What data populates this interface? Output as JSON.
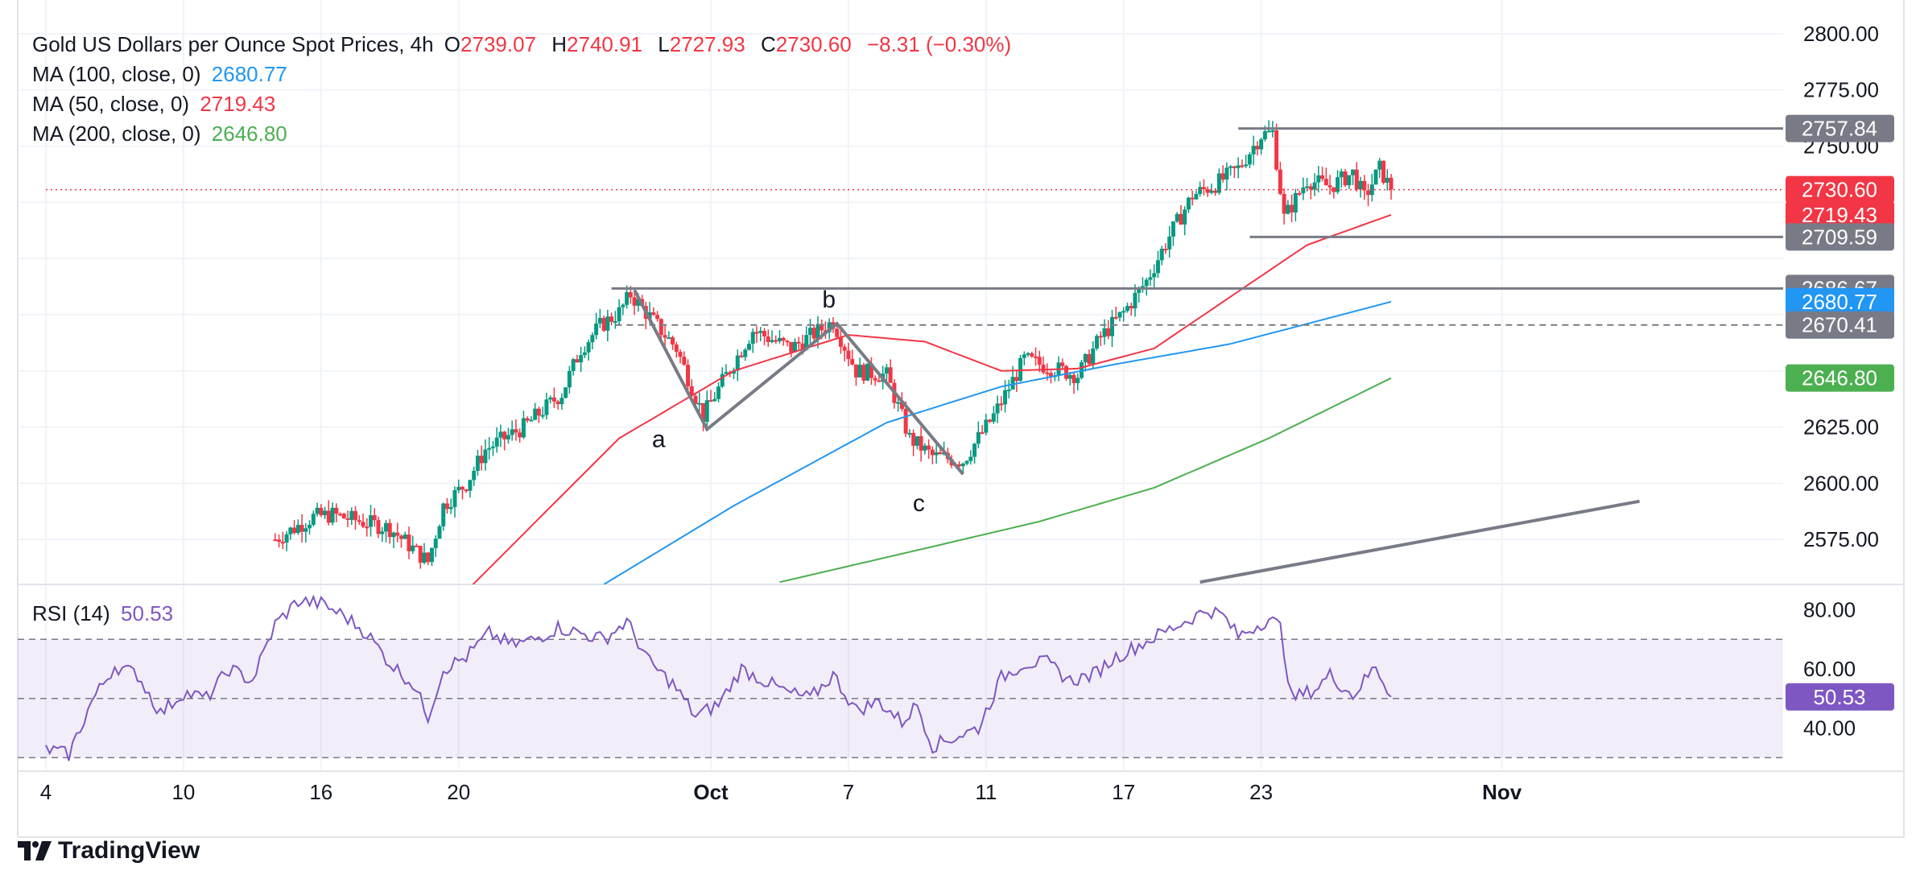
{
  "legend": {
    "title": "Gold US Dollars per Ounce Spot Prices, 4h",
    "o_label": "O",
    "o": "2739.07",
    "h_label": "H",
    "h": "2740.91",
    "l_label": "L",
    "l": "2727.93",
    "c_label": "C",
    "c": "2730.60",
    "change": "−8.31 (−0.30%)",
    "ma100_label": "MA (100, close, 0)",
    "ma100": "2680.77",
    "ma50_label": "MA (50, close, 0)",
    "ma50": "2719.43",
    "ma200_label": "MA (200, close, 0)",
    "ma200": "2646.80"
  },
  "rsi_legend": {
    "label": "RSI (14)",
    "value": "50.53"
  },
  "brand": "TradingView",
  "colors": {
    "up": "#089981",
    "down": "#f23645",
    "ma50": "#f23645",
    "ma100": "#2196f3",
    "ma200": "#4caf50",
    "rsi": "#7e57c2",
    "drawing": "#787b86",
    "grid": "#f0f3fa"
  },
  "chart_data": [
    {
      "type": "candlestick",
      "title": "Gold US Dollars per Ounce Spot Prices, 4h",
      "ylim": [
        2555,
        2815
      ],
      "y_ticks": [
        2575,
        2600,
        2625,
        2650,
        2675,
        2700,
        2725,
        2750,
        2775,
        2800
      ],
      "y_tick_labels": [
        "2575.00",
        "2600.00",
        "2625.00",
        "",
        "",
        "",
        "",
        "2750.00",
        "2775.00",
        "2800.00"
      ],
      "x_ticks": [
        {
          "label": "4",
          "bar": 0
        },
        {
          "label": "10",
          "bar": 36
        },
        {
          "label": "16",
          "bar": 72
        },
        {
          "label": "20",
          "bar": 108
        },
        {
          "label": "Oct",
          "bar": 174
        },
        {
          "label": "7",
          "bar": 210
        },
        {
          "label": "11",
          "bar": 246
        },
        {
          "label": "17",
          "bar": 282
        },
        {
          "label": "23",
          "bar": 318
        },
        {
          "label": "Nov",
          "bar": 381
        }
      ],
      "bar_count_axis": [
        0,
        417
      ],
      "key_points": [
        {
          "bar": 60,
          "price": 2575
        },
        {
          "bar": 70,
          "price": 2585
        },
        {
          "bar": 75,
          "price": 2586
        },
        {
          "bar": 90,
          "price": 2580
        },
        {
          "bar": 100,
          "price": 2565
        },
        {
          "bar": 104,
          "price": 2590
        },
        {
          "bar": 110,
          "price": 2600
        },
        {
          "bar": 115,
          "price": 2615
        },
        {
          "bar": 125,
          "price": 2625
        },
        {
          "bar": 135,
          "price": 2640
        },
        {
          "bar": 140,
          "price": 2660
        },
        {
          "bar": 145,
          "price": 2670
        },
        {
          "bar": 150,
          "price": 2676
        },
        {
          "bar": 153,
          "price": 2684
        },
        {
          "bar": 160,
          "price": 2670
        },
        {
          "bar": 165,
          "price": 2660
        },
        {
          "bar": 172,
          "price": 2630
        },
        {
          "bar": 178,
          "price": 2648
        },
        {
          "bar": 185,
          "price": 2668
        },
        {
          "bar": 195,
          "price": 2660
        },
        {
          "bar": 206,
          "price": 2672
        },
        {
          "bar": 212,
          "price": 2650
        },
        {
          "bar": 220,
          "price": 2648
        },
        {
          "bar": 226,
          "price": 2620
        },
        {
          "bar": 232,
          "price": 2612
        },
        {
          "bar": 240,
          "price": 2610
        },
        {
          "bar": 248,
          "price": 2630
        },
        {
          "bar": 256,
          "price": 2655
        },
        {
          "bar": 262,
          "price": 2652
        },
        {
          "bar": 270,
          "price": 2648
        },
        {
          "bar": 276,
          "price": 2665
        },
        {
          "bar": 282,
          "price": 2676
        },
        {
          "bar": 288,
          "price": 2690
        },
        {
          "bar": 294,
          "price": 2710
        },
        {
          "bar": 300,
          "price": 2728
        },
        {
          "bar": 306,
          "price": 2733
        },
        {
          "bar": 312,
          "price": 2740
        },
        {
          "bar": 318,
          "price": 2755
        },
        {
          "bar": 321,
          "price": 2756
        },
        {
          "bar": 324,
          "price": 2718
        },
        {
          "bar": 330,
          "price": 2735
        },
        {
          "bar": 336,
          "price": 2732
        },
        {
          "bar": 342,
          "price": 2738
        },
        {
          "bar": 345,
          "price": 2727
        },
        {
          "bar": 349,
          "price": 2740
        },
        {
          "bar": 352,
          "price": 2730.6
        }
      ],
      "moving_averages": [
        {
          "name": "MA (50, close, 0)",
          "color": "#f23645",
          "points": [
            {
              "bar": 110,
              "price": 2552
            },
            {
              "bar": 150,
              "price": 2620
            },
            {
              "bar": 180,
              "price": 2650
            },
            {
              "bar": 210,
              "price": 2666
            },
            {
              "bar": 230,
              "price": 2663
            },
            {
              "bar": 250,
              "price": 2650
            },
            {
              "bar": 270,
              "price": 2651
            },
            {
              "bar": 290,
              "price": 2660
            },
            {
              "bar": 310,
              "price": 2683
            },
            {
              "bar": 330,
              "price": 2706
            },
            {
              "bar": 352,
              "price": 2719.43
            }
          ]
        },
        {
          "name": "MA (100, close, 0)",
          "color": "#2196f3",
          "points": [
            {
              "bar": 146,
              "price": 2555
            },
            {
              "bar": 180,
              "price": 2590
            },
            {
              "bar": 220,
              "price": 2627
            },
            {
              "bar": 250,
              "price": 2643
            },
            {
              "bar": 280,
              "price": 2653
            },
            {
              "bar": 310,
              "price": 2662
            },
            {
              "bar": 352,
              "price": 2680.77
            }
          ]
        },
        {
          "name": "MA (200, close, 0)",
          "color": "#4caf50",
          "points": [
            {
              "bar": 192,
              "price": 2556
            },
            {
              "bar": 230,
              "price": 2571
            },
            {
              "bar": 260,
              "price": 2583
            },
            {
              "bar": 290,
              "price": 2598
            },
            {
              "bar": 320,
              "price": 2620
            },
            {
              "bar": 352,
              "price": 2646.8
            }
          ]
        }
      ],
      "price_labels": [
        {
          "value": "2757.84",
          "price": 2757.84,
          "color": "#787b86"
        },
        {
          "value": "2730.60",
          "price": 2730.6,
          "color": "#f23645"
        },
        {
          "value": "2719.43",
          "price": 2719.43,
          "color": "#f23645"
        },
        {
          "value": "2709.59",
          "price": 2709.59,
          "color": "#787b86"
        },
        {
          "value": "2686.67",
          "price": 2686.67,
          "color": "#787b86"
        },
        {
          "value": "2680.77",
          "price": 2680.77,
          "color": "#2196f3"
        },
        {
          "value": "2670.41",
          "price": 2670.41,
          "color": "#787b86"
        },
        {
          "value": "2646.80",
          "price": 2646.8,
          "color": "#4caf50"
        }
      ],
      "horizontal_lines": [
        {
          "price": 2757.84,
          "from_bar": 312,
          "style": "solid"
        },
        {
          "price": 2709.59,
          "from_bar": 315,
          "style": "solid"
        },
        {
          "price": 2686.67,
          "from_bar": 148,
          "style": "solid"
        },
        {
          "price": 2670.41,
          "from_bar": 149,
          "style": "dashed"
        },
        {
          "price": 2730.6,
          "from_bar": 0,
          "style": "dotted"
        }
      ],
      "abc_pattern": [
        {
          "bar": 154,
          "price": 2686,
          "label": ""
        },
        {
          "bar": 173,
          "price": 2624,
          "label": "a"
        },
        {
          "bar": 207,
          "price": 2671,
          "label": "b"
        },
        {
          "bar": 240,
          "price": 2604,
          "label": "c"
        }
      ],
      "trendline": [
        {
          "bar": 302,
          "price": 2556
        },
        {
          "bar": 417,
          "price": 2592
        }
      ]
    },
    {
      "type": "line",
      "title": "RSI (14)",
      "ylim": [
        26,
        88
      ],
      "y_ticks": [
        40,
        60,
        80
      ],
      "y_tick_labels": [
        "40.00",
        "60.00",
        "80.00"
      ],
      "bands": [
        30,
        50,
        70
      ],
      "last_value": 50.53,
      "key_points": [
        {
          "bar": 0,
          "value": 33
        },
        {
          "bar": 6,
          "value": 31
        },
        {
          "bar": 12,
          "value": 49
        },
        {
          "bar": 18,
          "value": 61
        },
        {
          "bar": 24,
          "value": 58
        },
        {
          "bar": 30,
          "value": 45
        },
        {
          "bar": 36,
          "value": 52
        },
        {
          "bar": 42,
          "value": 50
        },
        {
          "bar": 48,
          "value": 60
        },
        {
          "bar": 54,
          "value": 56
        },
        {
          "bar": 60,
          "value": 75
        },
        {
          "bar": 66,
          "value": 83
        },
        {
          "bar": 72,
          "value": 82
        },
        {
          "bar": 78,
          "value": 78
        },
        {
          "bar": 84,
          "value": 72
        },
        {
          "bar": 90,
          "value": 62
        },
        {
          "bar": 96,
          "value": 55
        },
        {
          "bar": 100,
          "value": 44
        },
        {
          "bar": 104,
          "value": 60
        },
        {
          "bar": 110,
          "value": 64
        },
        {
          "bar": 116,
          "value": 72
        },
        {
          "bar": 122,
          "value": 68
        },
        {
          "bar": 128,
          "value": 70
        },
        {
          "bar": 134,
          "value": 74
        },
        {
          "bar": 140,
          "value": 72
        },
        {
          "bar": 146,
          "value": 70
        },
        {
          "bar": 152,
          "value": 76
        },
        {
          "bar": 158,
          "value": 62
        },
        {
          "bar": 164,
          "value": 55
        },
        {
          "bar": 170,
          "value": 44
        },
        {
          "bar": 176,
          "value": 48
        },
        {
          "bar": 182,
          "value": 60
        },
        {
          "bar": 188,
          "value": 56
        },
        {
          "bar": 194,
          "value": 52
        },
        {
          "bar": 200,
          "value": 50
        },
        {
          "bar": 206,
          "value": 58
        },
        {
          "bar": 212,
          "value": 46
        },
        {
          "bar": 218,
          "value": 49
        },
        {
          "bar": 224,
          "value": 42
        },
        {
          "bar": 228,
          "value": 48
        },
        {
          "bar": 232,
          "value": 34
        },
        {
          "bar": 238,
          "value": 37
        },
        {
          "bar": 244,
          "value": 40
        },
        {
          "bar": 250,
          "value": 57
        },
        {
          "bar": 256,
          "value": 62
        },
        {
          "bar": 262,
          "value": 62
        },
        {
          "bar": 268,
          "value": 56
        },
        {
          "bar": 274,
          "value": 58
        },
        {
          "bar": 280,
          "value": 64
        },
        {
          "bar": 286,
          "value": 68
        },
        {
          "bar": 292,
          "value": 72
        },
        {
          "bar": 298,
          "value": 76
        },
        {
          "bar": 304,
          "value": 80
        },
        {
          "bar": 308,
          "value": 78
        },
        {
          "bar": 312,
          "value": 71
        },
        {
          "bar": 316,
          "value": 74
        },
        {
          "bar": 320,
          "value": 77
        },
        {
          "bar": 323,
          "value": 74
        },
        {
          "bar": 326,
          "value": 50
        },
        {
          "bar": 332,
          "value": 53
        },
        {
          "bar": 336,
          "value": 58
        },
        {
          "bar": 342,
          "value": 51
        },
        {
          "bar": 348,
          "value": 61
        },
        {
          "bar": 352,
          "value": 50.53
        }
      ]
    }
  ]
}
